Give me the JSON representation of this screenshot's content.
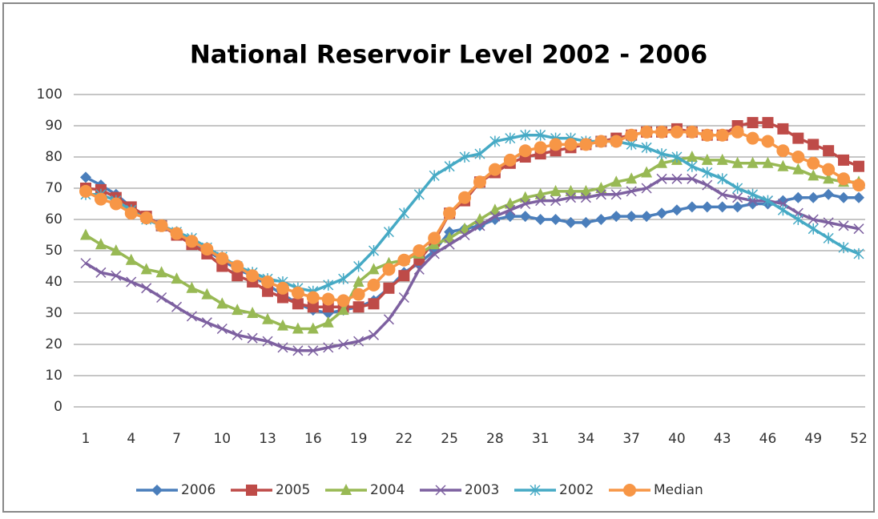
{
  "chart_data": {
    "type": "line",
    "title": "National Reservoir Level 2002 - 2006",
    "x": [
      1,
      2,
      3,
      4,
      5,
      6,
      7,
      8,
      9,
      10,
      11,
      12,
      13,
      14,
      15,
      16,
      17,
      18,
      19,
      20,
      21,
      22,
      23,
      24,
      25,
      26,
      27,
      28,
      29,
      30,
      31,
      32,
      33,
      34,
      35,
      36,
      37,
      38,
      39,
      40,
      41,
      42,
      43,
      44,
      45,
      46,
      47,
      48,
      49,
      50,
      51,
      52
    ],
    "xlim": [
      1,
      52
    ],
    "xticks": [
      1,
      4,
      7,
      10,
      13,
      16,
      19,
      22,
      25,
      28,
      31,
      34,
      37,
      40,
      43,
      46,
      49,
      52
    ],
    "ylim": [
      0,
      100
    ],
    "yticks": [
      0,
      10,
      20,
      30,
      40,
      50,
      60,
      70,
      80,
      90,
      100
    ],
    "grid": true,
    "legend": "bottom",
    "series": [
      {
        "name": "2006",
        "color": "#4a7ebb",
        "values": [
          73.5,
          71,
          68,
          64,
          61,
          58,
          56,
          53,
          50,
          47,
          44,
          42,
          39,
          36,
          33,
          31,
          30,
          31,
          32,
          34,
          38,
          43,
          46,
          50,
          56,
          57,
          58,
          60,
          61,
          61,
          60,
          60,
          59,
          59,
          60,
          61,
          61,
          61,
          62,
          63,
          64,
          64,
          64,
          64,
          65,
          65,
          66,
          67,
          67,
          68,
          67,
          67
        ]
      },
      {
        "name": "2005",
        "color": "#be4b48",
        "values": [
          70,
          69.5,
          67,
          64,
          61,
          58,
          55,
          52,
          49,
          45,
          42,
          40,
          37,
          35,
          33,
          32,
          32,
          32,
          32,
          33,
          38,
          42,
          47,
          53,
          62,
          66,
          72,
          75,
          78,
          80,
          81,
          82,
          83,
          84,
          85,
          86,
          87,
          88,
          88,
          89,
          88,
          87,
          87,
          90,
          91,
          91,
          89,
          86,
          84,
          82,
          79,
          77
        ]
      },
      {
        "name": "2004",
        "color": "#98b954",
        "values": [
          55,
          52,
          50,
          47,
          44,
          43,
          41,
          38,
          36,
          33,
          31,
          30,
          28,
          26,
          25,
          25,
          27,
          31,
          40,
          44,
          46,
          47,
          49,
          52,
          54,
          57,
          60,
          63,
          65,
          67,
          68,
          69,
          69,
          69,
          70,
          72,
          73,
          75,
          78,
          79,
          80,
          79,
          79,
          78,
          78,
          78,
          77,
          76,
          74,
          73,
          72,
          72
        ]
      },
      {
        "name": "2003",
        "color": "#7d60a0",
        "values": [
          46,
          43,
          42,
          40,
          38,
          35,
          32,
          29,
          27,
          25,
          23,
          22,
          21,
          19,
          18,
          18,
          19,
          20,
          21,
          23,
          28,
          35,
          44,
          49,
          52,
          55,
          58,
          61,
          63,
          65,
          66,
          66,
          67,
          67,
          68,
          68,
          69,
          70,
          73,
          73,
          73,
          71,
          68,
          67,
          66,
          66,
          65,
          62,
          60,
          59,
          58,
          57
        ]
      },
      {
        "name": "2002",
        "color": "#46aac5",
        "values": [
          68,
          68,
          66,
          63,
          60,
          58,
          56,
          54,
          51,
          48,
          45,
          43,
          41,
          40,
          38,
          37,
          39,
          41,
          45,
          50,
          56,
          62,
          68,
          74,
          77,
          80,
          81,
          85,
          86,
          87,
          87,
          86,
          86,
          85,
          85,
          85,
          84,
          83,
          81,
          80,
          77,
          75,
          73,
          70,
          68,
          66,
          63,
          60,
          57,
          54,
          51,
          49
        ]
      },
      {
        "name": "Median",
        "color": "#f79646",
        "values": [
          69,
          66.5,
          65,
          62,
          60.5,
          58,
          55.5,
          53,
          50.5,
          47.5,
          45,
          42,
          40,
          38,
          36.5,
          35,
          34.5,
          34,
          36,
          39,
          44,
          47,
          50,
          54,
          62,
          67,
          72,
          76,
          79,
          82,
          83,
          84,
          84,
          84,
          85,
          85,
          87,
          88,
          88,
          88,
          88,
          87,
          87,
          88,
          86,
          85,
          82,
          80,
          78,
          76,
          73,
          71
        ]
      }
    ]
  }
}
